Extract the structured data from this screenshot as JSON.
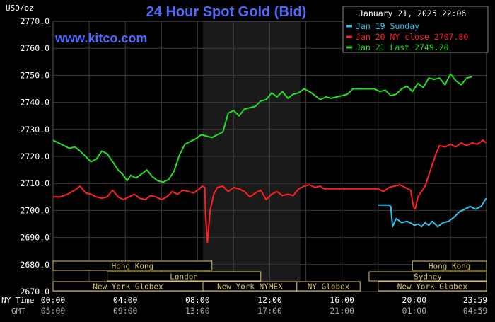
{
  "chart_data": {
    "type": "line",
    "title": "24 Hour Spot Gold (Bid)",
    "ylabel": "USD/oz",
    "watermark": "www.kitco.com",
    "timestamp": "January 21, 2025 22:06",
    "ylim": [
      2670,
      2770
    ],
    "y_ticks": [
      "2770.0",
      "2760.0",
      "2750.0",
      "2740.0",
      "2730.0",
      "2720.0",
      "2710.0",
      "2700.0",
      "2690.0",
      "2680.0",
      "2670.0"
    ],
    "x_label_ny": "NY Time",
    "x_label_gmt": "GMT",
    "x_ticks_ny": [
      "00:00",
      "04:00",
      "08:00",
      "12:00",
      "16:00",
      "20:00",
      "23:59"
    ],
    "x_ticks_gmt": [
      "05:00",
      "09:00",
      "13:00",
      "17:00",
      "21:00",
      "01:00",
      "04:59"
    ],
    "x_range_hours": [
      0,
      24
    ],
    "shaded_region_hours": [
      8.3,
      13.7
    ],
    "colors": {
      "background": "#000000",
      "grid": "#3a3a3a",
      "axis_text": "#ffffff",
      "title": "#4d6bff",
      "watermark": "#4d6bff",
      "sessions": "#d8c46a",
      "shade": "#1a1a1a"
    },
    "legend_position": "top-right",
    "series": [
      {
        "name": "Jan 19 Sunday",
        "color": "#2fc4f2",
        "x": [
          18.0,
          18.4,
          18.6,
          18.7,
          18.8,
          19.0,
          19.3,
          19.6,
          19.9,
          20.0,
          20.2,
          20.4,
          20.6,
          20.8,
          21.0,
          21.3,
          21.6,
          21.9,
          22.2,
          22.5,
          22.8,
          23.1,
          23.4,
          23.7,
          23.98
        ],
        "y": [
          2702.0,
          2702.0,
          2702.0,
          2701.5,
          2694.0,
          2697.0,
          2695.5,
          2696.0,
          2695.0,
          2694.5,
          2695.0,
          2694.0,
          2695.5,
          2694.5,
          2696.0,
          2694.0,
          2695.5,
          2696.0,
          2697.5,
          2699.5,
          2700.5,
          2701.5,
          2700.5,
          2701.5,
          2704.5
        ]
      },
      {
        "name": "Jan 20 NY close 2707.80",
        "color": "#ff2020",
        "x": [
          0,
          0.4,
          0.8,
          1.2,
          1.5,
          1.8,
          2.1,
          2.4,
          2.7,
          3.0,
          3.3,
          3.6,
          3.9,
          4.2,
          4.5,
          4.8,
          5.1,
          5.4,
          5.7,
          6.0,
          6.3,
          6.6,
          6.9,
          7.2,
          7.5,
          7.8,
          8.1,
          8.25,
          8.4,
          8.45,
          8.55,
          8.7,
          8.9,
          9.1,
          9.4,
          9.7,
          10.0,
          10.3,
          10.6,
          10.9,
          11.2,
          11.5,
          11.8,
          12.1,
          12.4,
          12.7,
          13.0,
          13.3,
          13.6,
          13.9,
          14.2,
          14.5,
          14.8,
          15.0,
          15.5,
          16.0,
          16.5,
          17.0,
          17.5,
          18.0,
          18.3,
          18.6,
          18.9,
          19.2,
          19.5,
          19.8,
          19.95,
          20.05,
          20.2,
          20.4,
          20.6,
          20.8,
          21.0,
          21.2,
          21.4,
          21.7,
          22.0,
          22.3,
          22.6,
          22.9,
          23.2,
          23.5,
          23.8,
          23.98
        ],
        "y": [
          2705.0,
          2705.0,
          2706.0,
          2707.5,
          2709.0,
          2706.5,
          2706.0,
          2705.0,
          2704.5,
          2705.0,
          2707.5,
          2705.0,
          2704.0,
          2705.0,
          2706.0,
          2704.5,
          2704.0,
          2705.5,
          2705.0,
          2704.0,
          2705.0,
          2707.0,
          2706.0,
          2707.5,
          2707.0,
          2706.5,
          2708.0,
          2709.0,
          2708.5,
          2698.0,
          2688.0,
          2700.0,
          2706.0,
          2708.5,
          2709.0,
          2707.0,
          2708.5,
          2708.0,
          2707.0,
          2705.0,
          2706.5,
          2707.5,
          2704.0,
          2706.0,
          2707.0,
          2705.5,
          2706.0,
          2705.5,
          2708.0,
          2709.0,
          2709.5,
          2708.5,
          2709.0,
          2708.0,
          2708.0,
          2708.0,
          2708.0,
          2708.0,
          2708.0,
          2708.0,
          2707.0,
          2708.5,
          2709.0,
          2709.5,
          2708.5,
          2707.5,
          2701.5,
          2700.5,
          2705.0,
          2707.0,
          2709.0,
          2713.0,
          2717.0,
          2721.0,
          2724.0,
          2723.5,
          2724.5,
          2723.5,
          2725.0,
          2724.0,
          2725.0,
          2724.5,
          2726.0,
          2725.0
        ]
      },
      {
        "name": "Jan 21 Last 2749.20",
        "color": "#22e022",
        "x": [
          0,
          0.3,
          0.6,
          0.9,
          1.2,
          1.5,
          1.8,
          2.1,
          2.4,
          2.7,
          3.0,
          3.3,
          3.6,
          3.9,
          4.1,
          4.3,
          4.6,
          4.9,
          5.2,
          5.5,
          5.8,
          6.1,
          6.4,
          6.7,
          7.0,
          7.3,
          7.6,
          7.9,
          8.2,
          8.5,
          8.8,
          9.1,
          9.4,
          9.7,
          10.0,
          10.3,
          10.6,
          10.9,
          11.2,
          11.5,
          11.8,
          12.1,
          12.4,
          12.7,
          13.0,
          13.3,
          13.6,
          13.9,
          14.2,
          14.5,
          14.8,
          15.1,
          15.4,
          15.7,
          16.0,
          16.3,
          16.6,
          16.9,
          17.2,
          17.5,
          17.8,
          18.1,
          18.4,
          18.7,
          19.0,
          19.3,
          19.6,
          19.9,
          20.2,
          20.5,
          20.8,
          21.1,
          21.4,
          21.7,
          22.0,
          22.3,
          22.6,
          22.9,
          23.2
        ],
        "y": [
          2726.0,
          2725.0,
          2724.0,
          2723.0,
          2723.5,
          2722.0,
          2720.0,
          2718.0,
          2719.0,
          2722.0,
          2721.0,
          2718.0,
          2715.0,
          2713.0,
          2711.0,
          2713.0,
          2712.0,
          2713.5,
          2715.0,
          2712.5,
          2711.0,
          2710.5,
          2711.5,
          2714.5,
          2720.5,
          2724.5,
          2725.5,
          2726.5,
          2728.0,
          2727.5,
          2727.0,
          2728.0,
          2729.0,
          2736.0,
          2737.0,
          2735.0,
          2737.5,
          2738.0,
          2738.5,
          2740.5,
          2741.0,
          2743.5,
          2742.0,
          2744.0,
          2741.5,
          2743.0,
          2743.5,
          2745.0,
          2744.0,
          2742.5,
          2741.0,
          2742.0,
          2741.5,
          2742.0,
          2742.5,
          2743.0,
          2745.0,
          2745.0,
          2745.0,
          2745.0,
          2745.0,
          2744.0,
          2744.5,
          2742.5,
          2743.0,
          2745.0,
          2746.0,
          2744.0,
          2747.0,
          2745.5,
          2749.0,
          2748.5,
          2749.0,
          2746.5,
          2750.5,
          2748.0,
          2746.5,
          2749.0,
          2749.5
        ]
      }
    ],
    "sessions": {
      "row1": [
        {
          "label": "Hong Kong",
          "start": 0.0,
          "end": 8.8
        },
        {
          "label": "Hong Kong",
          "start": 19.9,
          "end": 24.0
        }
      ],
      "row2": [
        {
          "label": "London",
          "start": 3.0,
          "end": 11.5
        },
        {
          "label": "Sydney",
          "start": 17.5,
          "end": 24.0
        }
      ],
      "row3": [
        {
          "label": "New York Globex",
          "start": 0.0,
          "end": 8.3
        },
        {
          "label": "New York NYMEX",
          "start": 8.3,
          "end": 13.5
        },
        {
          "label": "NY Globex",
          "start": 13.5,
          "end": 17.0
        },
        {
          "label": "New York Globex",
          "start": 18.0,
          "end": 24.0
        }
      ]
    }
  }
}
